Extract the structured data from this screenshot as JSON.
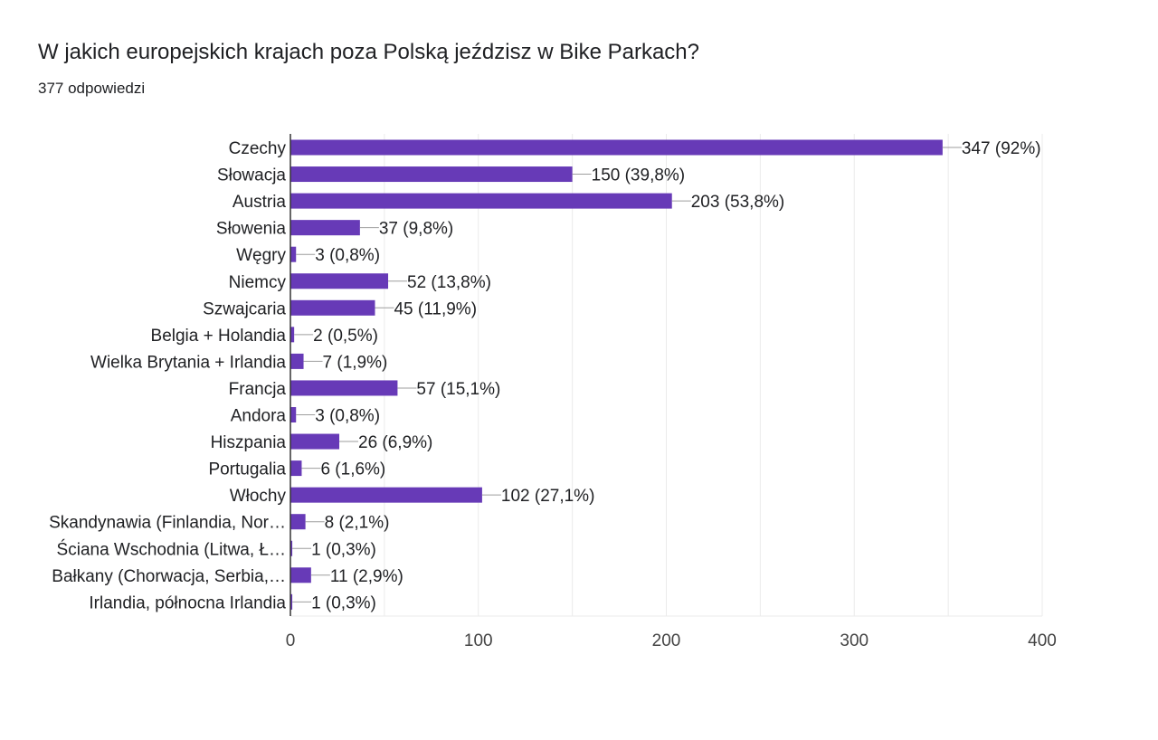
{
  "chart_data": {
    "type": "bar",
    "orientation": "horizontal",
    "title": "W jakich europejskich krajach poza Polską jeździsz w Bike Parkach?",
    "subtitle": "377 odpowiedzi",
    "categories": [
      "Czechy",
      "Słowacja",
      "Austria",
      "Słowenia",
      "Węgry",
      "Niemcy",
      "Szwajcaria",
      "Belgia + Holandia",
      "Wielka Brytania + Irlandia",
      "Francja",
      "Andora",
      "Hiszpania",
      "Portugalia",
      "Włochy",
      "Skandynawia (Finlandia, Nor…",
      "Ściana Wschodnia (Litwa, Ł…",
      "Bałkany (Chorwacja, Serbia,…",
      "Irlandia, północna Irlandia"
    ],
    "values": [
      347,
      150,
      203,
      37,
      3,
      52,
      45,
      2,
      7,
      57,
      3,
      26,
      6,
      102,
      8,
      1,
      11,
      1
    ],
    "value_labels": [
      "347 (92%)",
      "150 (39,8%)",
      "203 (53,8%)",
      "37 (9,8%)",
      "3 (0,8%)",
      "52 (13,8%)",
      "45 (11,9%)",
      "2 (0,5%)",
      "7 (1,9%)",
      "57 (15,1%)",
      "3 (0,8%)",
      "26 (6,9%)",
      "6 (1,6%)",
      "102 (27,1%)",
      "8 (2,1%)",
      "1 (0,3%)",
      "11 (2,9%)",
      "1 (0,3%)"
    ],
    "xlim": [
      0,
      400
    ],
    "xticks": [
      "0",
      "100",
      "200",
      "300",
      "400"
    ],
    "xlabel": "",
    "ylabel": "",
    "grid": true,
    "colors": {
      "bar": "#673ab7",
      "grid": "#ebebeb",
      "axis": "#333333",
      "leader": "#9e9e9e"
    }
  }
}
